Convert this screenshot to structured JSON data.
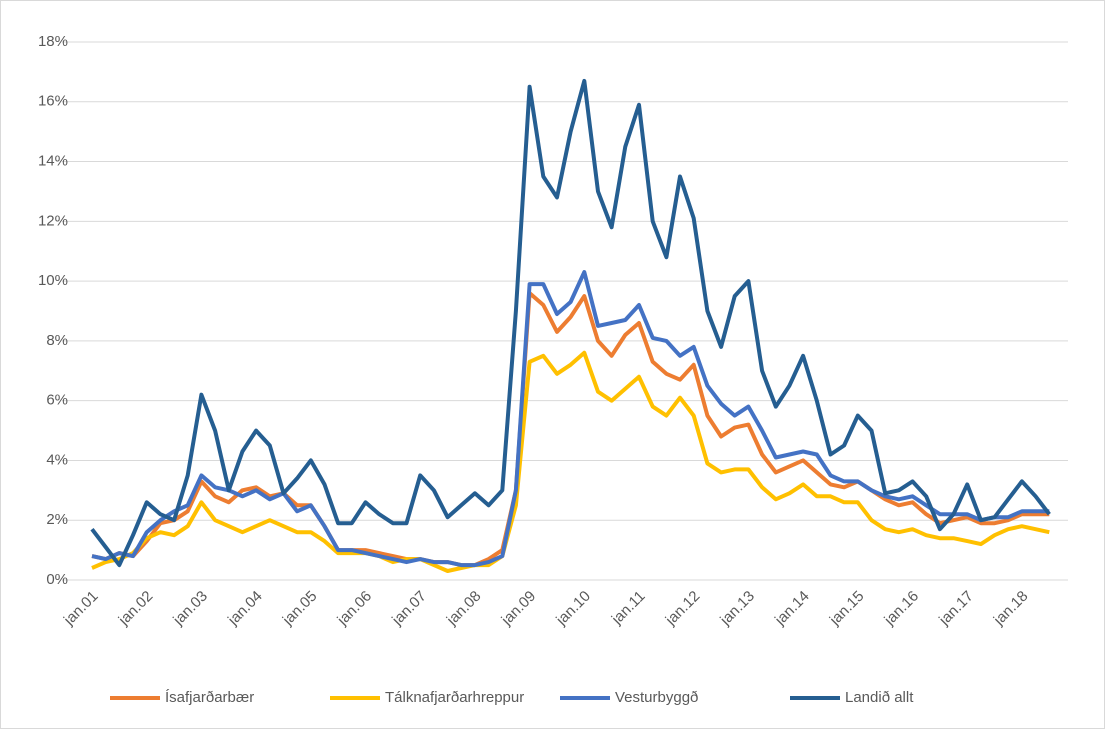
{
  "chart_data": {
    "type": "line",
    "categories": [
      "jan.01",
      null,
      null,
      null,
      "jan.02",
      null,
      null,
      null,
      "jan.03",
      null,
      null,
      null,
      "jan.04",
      null,
      null,
      null,
      "jan.05",
      null,
      null,
      null,
      "jan.06",
      null,
      null,
      null,
      "jan.07",
      null,
      null,
      null,
      "jan.08",
      null,
      null,
      null,
      "jan.09",
      null,
      null,
      null,
      "jan.10",
      null,
      null,
      null,
      "jan.11",
      null,
      null,
      null,
      "jan.12",
      null,
      null,
      null,
      "jan.13",
      null,
      null,
      null,
      "jan.14",
      null,
      null,
      null,
      "jan.15",
      null,
      null,
      null,
      "jan.16",
      null,
      null,
      null,
      "jan.17",
      null,
      null,
      null,
      "jan.18",
      null,
      null
    ],
    "series": [
      {
        "name": "Ísafjarðarbær",
        "color": "#ed7d31",
        "values": [
          0.8,
          0.7,
          0.9,
          0.8,
          1.3,
          1.9,
          2.0,
          2.3,
          3.3,
          2.8,
          2.6,
          3.0,
          3.1,
          2.8,
          2.9,
          2.5,
          2.5,
          1.8,
          1.0,
          1.0,
          1.0,
          0.9,
          0.8,
          0.7,
          0.7,
          0.6,
          0.6,
          0.5,
          0.5,
          0.7,
          1.0,
          3.0,
          9.6,
          9.2,
          8.3,
          8.8,
          9.5,
          8.0,
          7.5,
          8.2,
          8.6,
          7.3,
          6.9,
          6.7,
          7.2,
          5.5,
          4.8,
          5.1,
          5.2,
          4.2,
          3.6,
          3.8,
          4.0,
          3.6,
          3.2,
          3.1,
          3.3,
          3.0,
          2.7,
          2.5,
          2.6,
          2.2,
          1.9,
          2.0,
          2.1,
          1.9,
          1.9,
          2.0,
          2.2,
          2.2,
          2.2
        ]
      },
      {
        "name": "Tálknafjarðarhreppur",
        "color": "#ffc000",
        "values": [
          0.4,
          0.6,
          0.7,
          0.9,
          1.4,
          1.6,
          1.5,
          1.8,
          2.6,
          2.0,
          1.8,
          1.6,
          1.8,
          2.0,
          1.8,
          1.6,
          1.6,
          1.3,
          0.9,
          0.9,
          0.9,
          0.8,
          0.6,
          0.7,
          0.7,
          0.5,
          0.3,
          0.4,
          0.5,
          0.5,
          0.8,
          2.5,
          7.3,
          7.5,
          6.9,
          7.2,
          7.6,
          6.3,
          6.0,
          6.4,
          6.8,
          5.8,
          5.5,
          6.1,
          5.5,
          3.9,
          3.6,
          3.7,
          3.7,
          3.1,
          2.7,
          2.9,
          3.2,
          2.8,
          2.8,
          2.6,
          2.6,
          2.0,
          1.7,
          1.6,
          1.7,
          1.5,
          1.4,
          1.4,
          1.3,
          1.2,
          1.5,
          1.7,
          1.8,
          1.7,
          1.6
        ]
      },
      {
        "name": "Vesturbyggð",
        "color": "#4472c4",
        "values": [
          0.8,
          0.7,
          0.9,
          0.8,
          1.6,
          2.0,
          2.3,
          2.5,
          3.5,
          3.1,
          3.0,
          2.8,
          3.0,
          2.7,
          2.9,
          2.3,
          2.5,
          1.8,
          1.0,
          1.0,
          0.9,
          0.8,
          0.7,
          0.6,
          0.7,
          0.6,
          0.6,
          0.5,
          0.5,
          0.6,
          0.8,
          3.0,
          9.9,
          9.9,
          8.9,
          9.3,
          10.3,
          8.5,
          8.6,
          8.7,
          9.2,
          8.1,
          8.0,
          7.5,
          7.8,
          6.5,
          5.9,
          5.5,
          5.8,
          5.0,
          4.1,
          4.2,
          4.3,
          4.2,
          3.5,
          3.3,
          3.3,
          3.0,
          2.8,
          2.7,
          2.8,
          2.5,
          2.2,
          2.2,
          2.2,
          2.0,
          2.1,
          2.1,
          2.3,
          2.3,
          2.3
        ]
      },
      {
        "name": "Landið allt",
        "color": "#255e91",
        "values": [
          1.7,
          1.1,
          0.5,
          1.5,
          2.6,
          2.2,
          2.0,
          3.5,
          6.2,
          5.0,
          3.0,
          4.3,
          5.0,
          4.5,
          2.9,
          3.4,
          4.0,
          3.2,
          1.9,
          1.9,
          2.6,
          2.2,
          1.9,
          1.9,
          3.5,
          3.0,
          2.1,
          2.5,
          2.9,
          2.5,
          3.0,
          9.0,
          16.5,
          13.5,
          12.8,
          15.0,
          16.7,
          13.0,
          11.8,
          14.5,
          15.9,
          12.0,
          10.8,
          13.5,
          12.1,
          9.0,
          7.8,
          9.5,
          10.0,
          7.0,
          5.8,
          6.5,
          7.5,
          6.0,
          4.2,
          4.5,
          5.5,
          5.0,
          2.9,
          3.0,
          3.3,
          2.8,
          1.7,
          2.2,
          3.2,
          2.0,
          2.1,
          2.7,
          3.3,
          2.8,
          2.2
        ]
      }
    ],
    "ylim": [
      0,
      18
    ],
    "yticks": [
      {
        "value": 0,
        "label": "0%"
      },
      {
        "value": 2,
        "label": "2%"
      },
      {
        "value": 4,
        "label": "4%"
      },
      {
        "value": 6,
        "label": "6%"
      },
      {
        "value": 8,
        "label": "8%"
      },
      {
        "value": 10,
        "label": "10%"
      },
      {
        "value": 12,
        "label": "12%"
      },
      {
        "value": 14,
        "label": "14%"
      },
      {
        "value": 16,
        "label": "16%"
      },
      {
        "value": 18,
        "label": "18%"
      }
    ],
    "grid": true,
    "legend": "bottom"
  }
}
